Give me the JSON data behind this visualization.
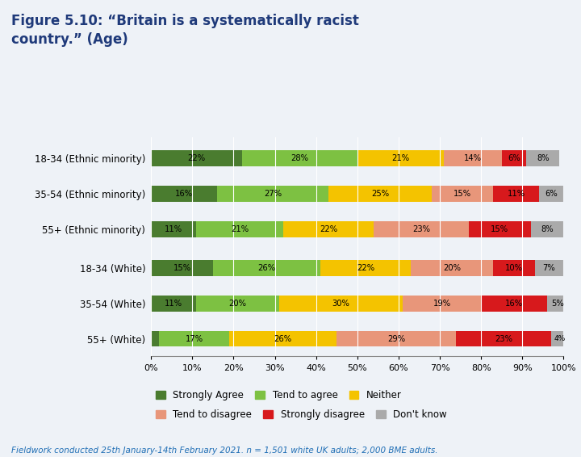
{
  "title": "Figure 5.10: “Britain is a systematically racist\ncountry.” (Age)",
  "categories": [
    "18-34 (Ethnic minority)",
    "35-54 (Ethnic minority)",
    "55+ (Ethnic minority)",
    "18-34 (White)",
    "35-54 (White)",
    "55+ (White)"
  ],
  "series": {
    "Strongly Agree": [
      22,
      16,
      11,
      15,
      11,
      2
    ],
    "Tend to agree": [
      28,
      27,
      21,
      26,
      20,
      17
    ],
    "Neither": [
      21,
      25,
      22,
      22,
      30,
      26
    ],
    "Tend to disagree": [
      14,
      15,
      23,
      20,
      19,
      29
    ],
    "Strongly disagree": [
      6,
      11,
      15,
      10,
      16,
      23
    ],
    "Don't know": [
      8,
      6,
      8,
      7,
      5,
      4
    ]
  },
  "colors": {
    "Strongly Agree": "#4a7c2f",
    "Tend to agree": "#7dc142",
    "Neither": "#f4c300",
    "Tend to disagree": "#e8967a",
    "Strongly disagree": "#d7191c",
    "Don't know": "#aaaaaa"
  },
  "legend_order": [
    "Strongly Agree",
    "Tend to agree",
    "Neither",
    "Tend to disagree",
    "Strongly disagree",
    "Don't know"
  ],
  "footnote": "Fieldwork conducted 25th January-14th February 2021. n = 1,501 white UK adults; 2,000 BME adults.",
  "bg_color": "#eef2f7",
  "title_color": "#1f3a7a",
  "footnote_color": "#1f6eb5",
  "bar_height": 0.45,
  "y_positions": [
    5.0,
    4.0,
    3.0,
    1.9,
    0.9,
    -0.1
  ],
  "ylim": [
    -0.6,
    5.6
  ],
  "figsize": [
    7.2,
    5.66
  ],
  "dpi": 100
}
